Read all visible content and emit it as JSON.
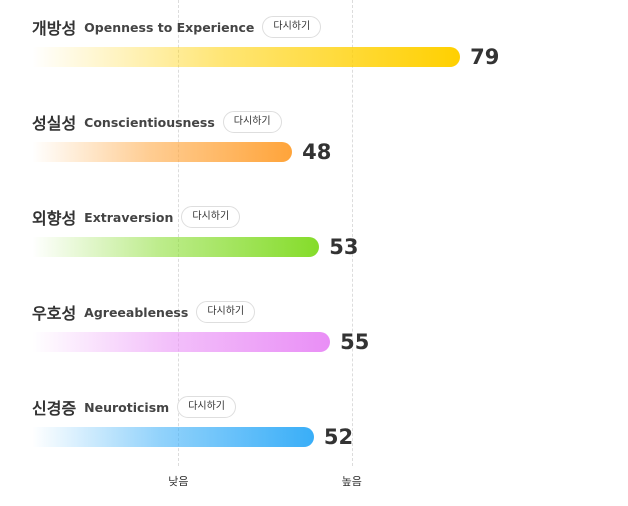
{
  "chart_data": {
    "type": "bar",
    "orientation": "horizontal",
    "series": [
      {
        "name_ko": "개방성",
        "name_en": "Openness to Experience",
        "value": 79,
        "color": "#ffd000"
      },
      {
        "name_ko": "성실성",
        "name_en": "Conscientiousness",
        "value": 48,
        "color": "#ffa43a"
      },
      {
        "name_ko": "외향성",
        "name_en": "Extraversion",
        "value": 53,
        "color": "#85dc2a"
      },
      {
        "name_ko": "우호성",
        "name_en": "Agreeableness",
        "value": 55,
        "color": "#e98ef6"
      },
      {
        "name_ko": "신경증",
        "name_en": "Neuroticism",
        "value": 52,
        "color": "#39aef8"
      }
    ],
    "xlim": [
      0,
      100
    ],
    "axis_labels": [
      {
        "label": "낮음",
        "value": 27
      },
      {
        "label": "높음",
        "value": 59
      }
    ],
    "grid": true
  },
  "ui": {
    "retake_label": "다시하기"
  }
}
